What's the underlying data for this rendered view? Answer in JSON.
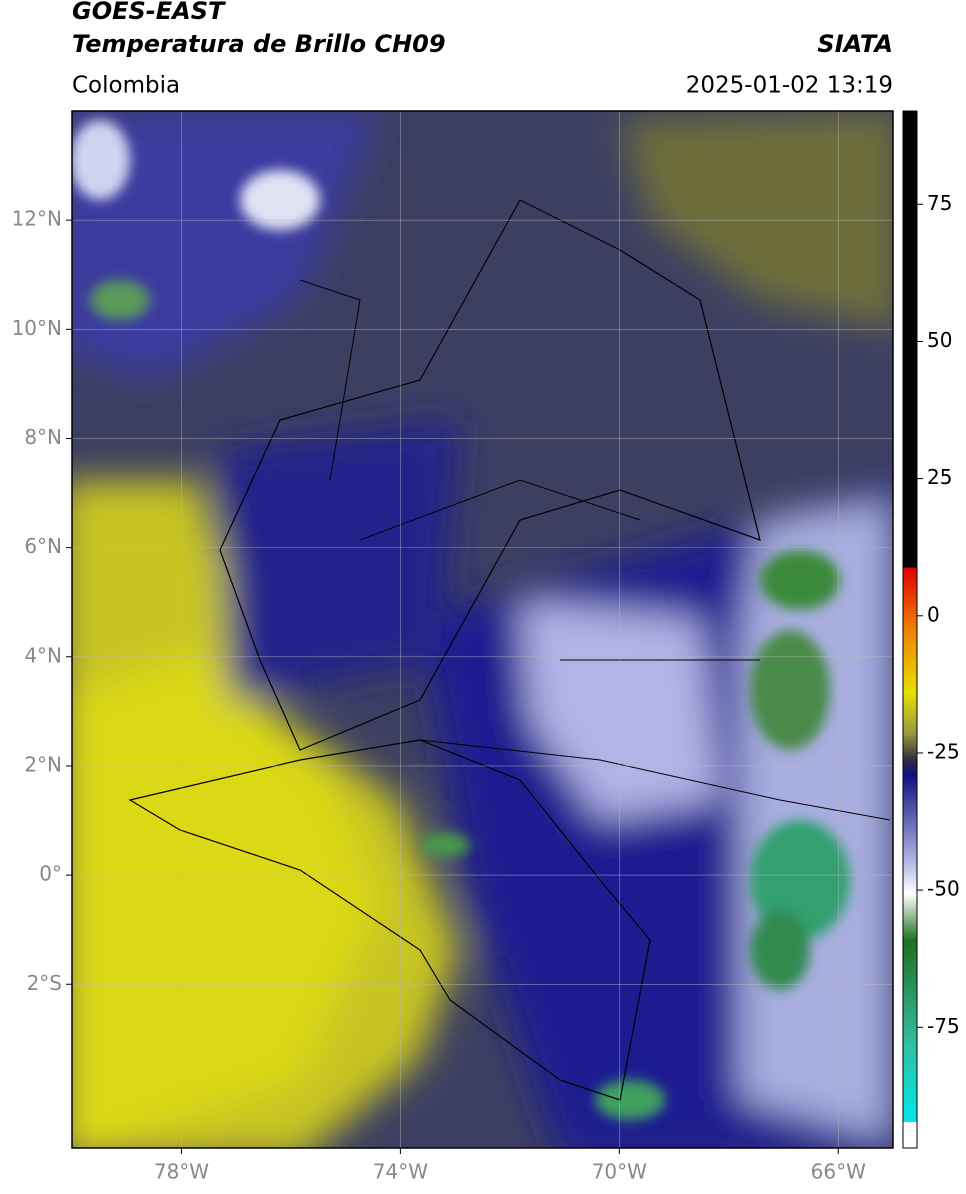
{
  "header": {
    "title": "GOES-EAST",
    "subtitle": "Temperatura de Brillo CH09",
    "source": "SIATA",
    "region": "Colombia",
    "timestamp": "2025-01-02 13:19"
  },
  "map": {
    "xlim": [
      -80,
      -65
    ],
    "ylim": [
      -5,
      14
    ],
    "xticks": [
      {
        "value": -78,
        "label": "78°W"
      },
      {
        "value": -74,
        "label": "74°W"
      },
      {
        "value": -70,
        "label": "70°W"
      },
      {
        "value": -66,
        "label": "66°W"
      }
    ],
    "yticks": [
      {
        "value": 12,
        "label": "12°N"
      },
      {
        "value": 10,
        "label": "10°N"
      },
      {
        "value": 8,
        "label": "8°N"
      },
      {
        "value": 6,
        "label": "6°N"
      },
      {
        "value": 4,
        "label": "4°N"
      },
      {
        "value": 2,
        "label": "2°N"
      },
      {
        "value": 0,
        "label": "0°"
      },
      {
        "value": -2,
        "label": "2°S"
      }
    ],
    "grid": true
  },
  "colorbar": {
    "lim": [
      -97,
      92
    ],
    "ticks": [
      75,
      50,
      25,
      0,
      -25,
      -50,
      -75
    ]
  }
}
